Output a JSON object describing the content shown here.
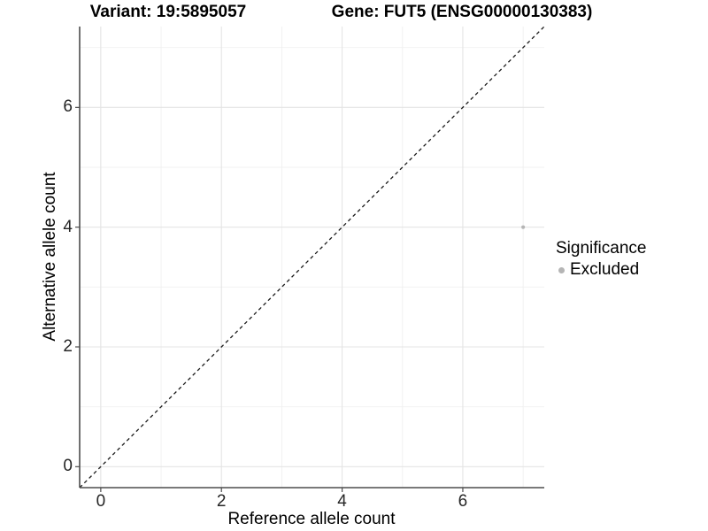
{
  "plot_titles": {
    "left": "Variant: 19:5895057",
    "right": "Gene: FUT5 (ENSG00000130383)"
  },
  "axes": {
    "x_label": "Reference allele count",
    "y_label": "Alternative allele count"
  },
  "legend": {
    "title": "Significance",
    "items": [
      {
        "label": "Excluded",
        "color": "#b5b5b5"
      }
    ]
  },
  "colors": {
    "background": "#ffffff",
    "grid_major": "#e4e4e4",
    "grid_minor": "#f0f0f0",
    "axis_line": "#4d4d4d",
    "tick_mark": "#4d4d4d",
    "tick_text": "#262626",
    "diagonal_line": "#1a1a1a",
    "point": "#b5b5b5"
  },
  "chart_data": {
    "type": "scatter",
    "title": "Variant: 19:5895057 / Gene: FUT5 (ENSG00000130383)",
    "xlabel": "Reference allele count",
    "ylabel": "Alternative allele count",
    "xlim": [
      -0.35,
      7.35
    ],
    "ylim": [
      -0.35,
      7.35
    ],
    "xticks": [
      0,
      2,
      4,
      6
    ],
    "yticks": [
      0,
      2,
      4,
      6
    ],
    "x_minor": [
      1,
      3,
      5,
      7
    ],
    "y_minor": [
      1,
      3,
      5,
      7
    ],
    "grid": "major+minor",
    "reference_line": {
      "type": "identity y=x",
      "style": "dashed",
      "color": "#1a1a1a"
    },
    "series": [
      {
        "name": "Excluded",
        "color": "#b5b5b5",
        "points": [
          {
            "x": 7,
            "y": 4
          }
        ]
      }
    ],
    "legend_title": "Significance",
    "legend_position": "right"
  }
}
